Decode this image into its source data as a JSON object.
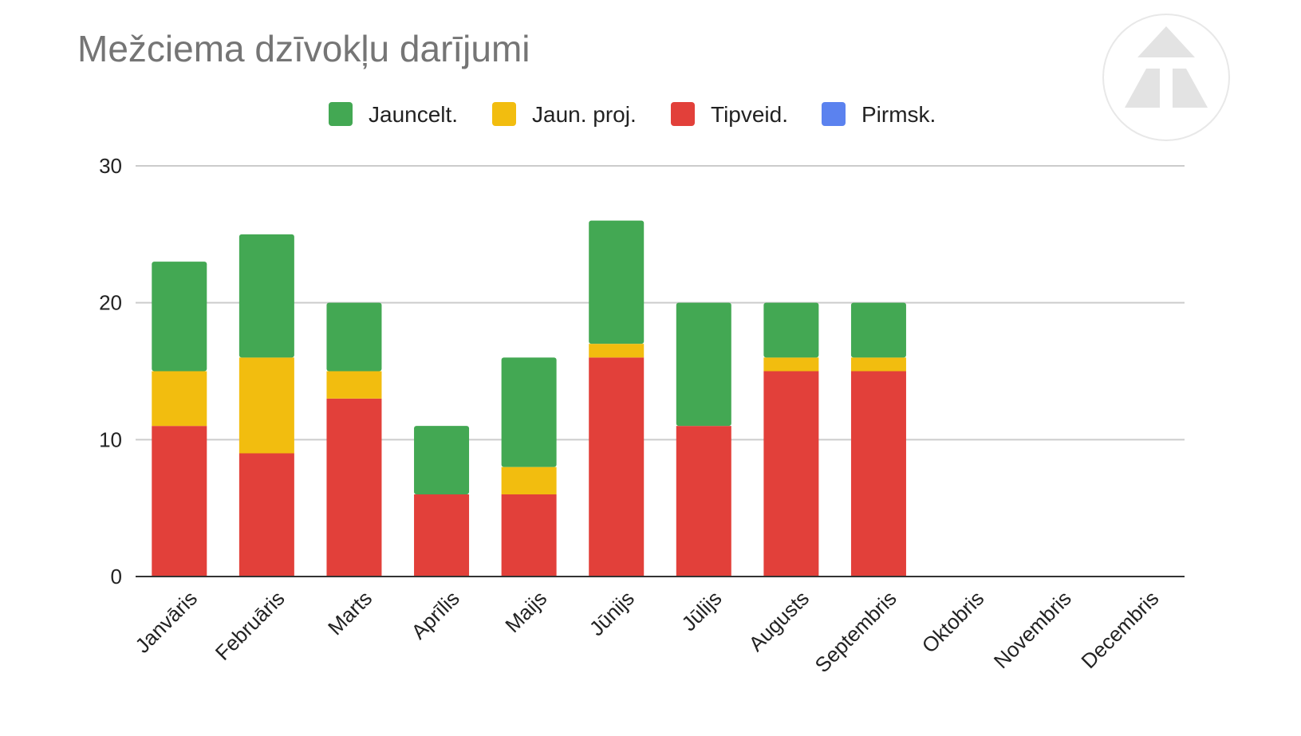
{
  "chart_data": {
    "type": "bar",
    "stacked": true,
    "title": "Mežciema dzīvokļu darījumi",
    "xlabel": "",
    "ylabel": "",
    "ylim": [
      0,
      30
    ],
    "yticks": [
      0,
      10,
      20,
      30
    ],
    "grid": true,
    "legend_position": "top",
    "categories": [
      "Janvāris",
      "Februāris",
      "Marts",
      "Aprīlis",
      "Maijs",
      "Jūnijs",
      "Jūlijs",
      "Augusts",
      "Septembris",
      "Oktobris",
      "Novembris",
      "Decembris"
    ],
    "series": [
      {
        "name": "Jauncelt.",
        "color": "#43a853",
        "values": [
          8,
          9,
          5,
          5,
          8,
          9,
          9,
          4,
          4,
          0,
          0,
          0
        ]
      },
      {
        "name": "Jaun. proj.",
        "color": "#f2bd0f",
        "values": [
          4,
          7,
          2,
          0,
          2,
          1,
          0,
          1,
          1,
          0,
          0,
          0
        ]
      },
      {
        "name": "Tipveid.",
        "color": "#e2403a",
        "values": [
          11,
          9,
          13,
          6,
          6,
          16,
          11,
          15,
          15,
          0,
          0,
          0
        ]
      },
      {
        "name": "Pirmsk.",
        "color": "#5b82ef",
        "values": [
          0,
          0,
          0,
          0,
          0,
          0,
          0,
          0,
          0,
          0,
          0,
          0
        ]
      }
    ],
    "stack_order_bottom_to_top": [
      "Pirmsk.",
      "Tipveid.",
      "Jaun. proj.",
      "Jauncelt."
    ],
    "watermark": "logo-icon"
  }
}
